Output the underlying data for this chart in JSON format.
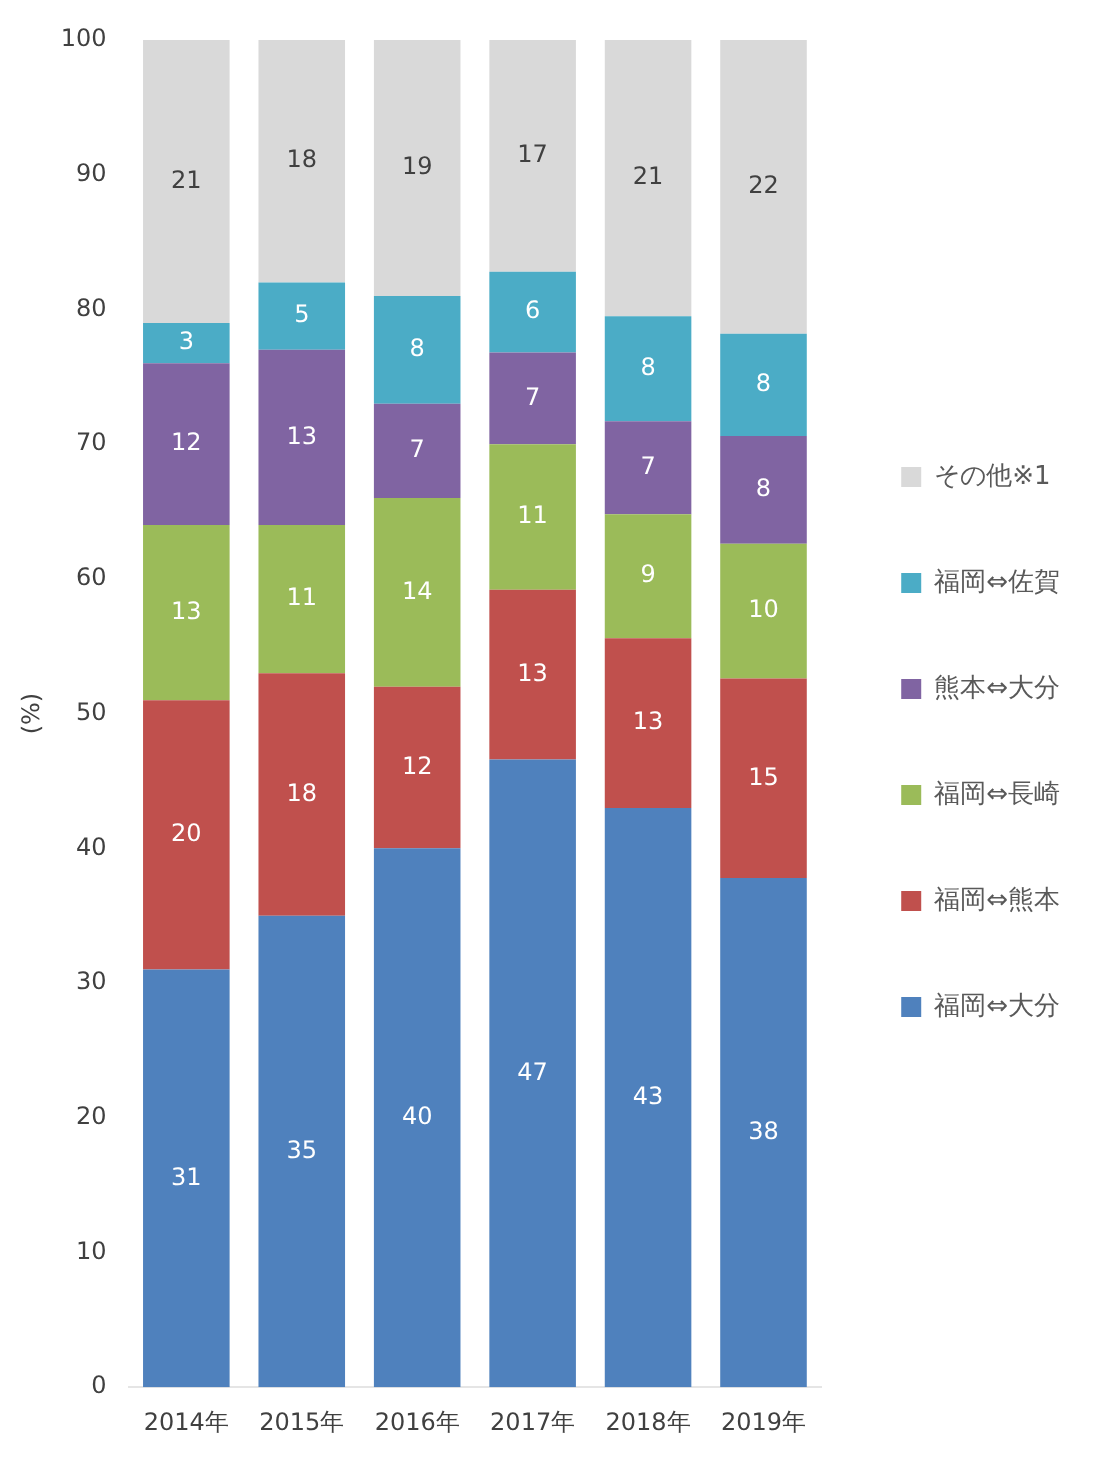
{
  "chart_data": {
    "type": "bar",
    "stacked": true,
    "ylabel": "(%)",
    "categories": [
      "2014年",
      "2015年",
      "2016年",
      "2017年",
      "2018年",
      "2019年"
    ],
    "series": [
      {
        "name": "福岡⇔大分",
        "color": "#4f81bd",
        "values": [
          31,
          35,
          40,
          46.6,
          43,
          37.8
        ],
        "value_labels": [
          "31",
          "35",
          "40",
          "47",
          "43",
          "38"
        ]
      },
      {
        "name": "福岡⇔熊本",
        "color": "#c0504d",
        "values": [
          20,
          18,
          12,
          12.6,
          12.6,
          14.8
        ],
        "value_labels": [
          "20",
          "18",
          "12",
          "13",
          "13",
          "15"
        ]
      },
      {
        "name": "福岡⇔長崎",
        "color": "#9bbb59",
        "values": [
          13,
          11,
          14,
          10.8,
          9.2,
          10
        ],
        "value_labels": [
          "13",
          "11",
          "14",
          "11",
          "9",
          "10"
        ]
      },
      {
        "name": "熊本⇔大分",
        "color": "#8064a2",
        "values": [
          12,
          13,
          7,
          6.8,
          6.9,
          8
        ],
        "value_labels": [
          "12",
          "13",
          "7",
          "7",
          "7",
          "8"
        ]
      },
      {
        "name": "福岡⇔佐賀",
        "color": "#4bacc6",
        "values": [
          3,
          5,
          8,
          6,
          7.8,
          7.6
        ],
        "value_labels": [
          "3",
          "5",
          "8",
          "6",
          "8",
          "8"
        ]
      },
      {
        "name": "その他※1",
        "color": "#d9d9d9",
        "values": [
          21,
          18,
          19,
          17.2,
          20.5,
          21.8
        ],
        "value_labels": [
          "21",
          "18",
          "19",
          "17",
          "21",
          "22"
        ]
      }
    ],
    "ylim": [
      0,
      100
    ],
    "yticks": [
      0,
      10,
      20,
      30,
      40,
      50,
      60,
      70,
      80,
      90,
      100
    ],
    "grid": false,
    "legend": "right"
  }
}
